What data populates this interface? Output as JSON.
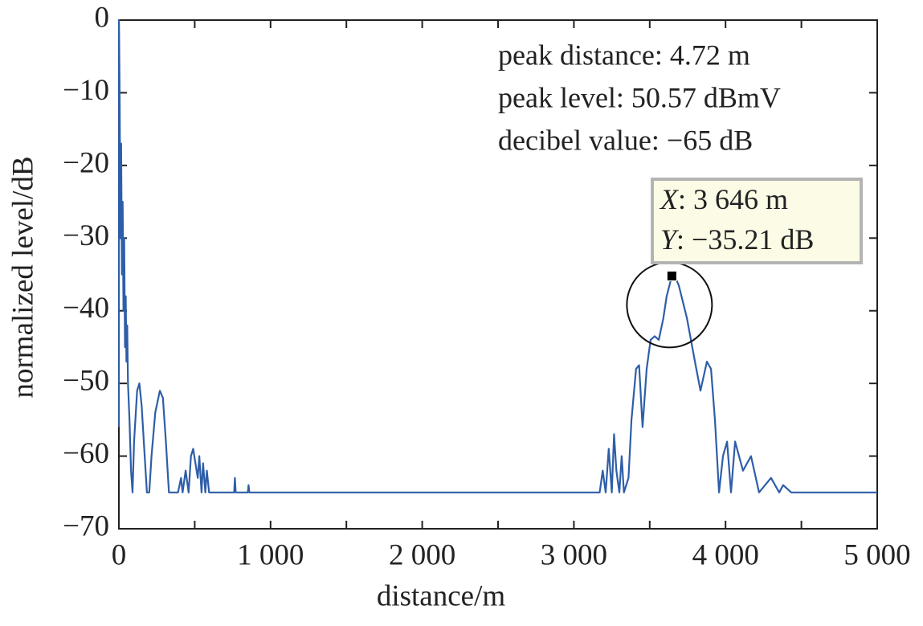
{
  "chart_data": {
    "type": "line",
    "x_label": "distance/m",
    "y_label": "normalized level/dB",
    "color": "#2e5ea8",
    "xlim": [
      0,
      5000
    ],
    "ylim": [
      -70,
      0
    ],
    "xticks": [
      0,
      {
        "value": 1000,
        "label": "1 000"
      },
      {
        "value": 2000,
        "label": "2 000"
      },
      {
        "value": 3000,
        "label": "3 000"
      },
      {
        "value": 4000,
        "label": "4 000"
      },
      {
        "value": 5000,
        "label": "5 000"
      }
    ],
    "xminor_ticks": [
      500,
      1500,
      2500,
      3500,
      4500
    ],
    "yticks": [
      0,
      {
        "value": -10,
        "label": "−10"
      },
      {
        "value": -20,
        "label": "−20"
      },
      {
        "value": -30,
        "label": "−30"
      },
      {
        "value": -40,
        "label": "−40"
      },
      {
        "value": -50,
        "label": "−50"
      },
      {
        "value": -60,
        "label": "−60"
      },
      {
        "value": -70,
        "label": "−70"
      }
    ],
    "annotations": [
      "peak distance: 4.72 m",
      "peak level: 50.57 dBmV",
      "decibel value: −65 dB"
    ],
    "datatip": {
      "x": 3646,
      "y": -35.21,
      "x_name": "X",
      "x_text": ": 3 646 m",
      "y_name": "Y",
      "y_text": ": −35.21 dB"
    },
    "x": [
      0,
      0.5,
      5,
      10,
      15,
      20,
      25,
      30,
      35,
      40,
      45,
      50,
      55,
      60,
      70,
      80,
      90,
      100,
      120,
      135,
      150,
      170,
      185,
      200,
      215,
      240,
      270,
      290,
      310,
      330,
      390,
      410,
      420,
      440,
      460,
      475,
      490,
      505,
      520,
      530,
      545,
      555,
      570,
      580,
      595,
      760,
      765,
      770,
      850,
      855,
      860,
      3170,
      3190,
      3210,
      3230,
      3250,
      3265,
      3280,
      3300,
      3315,
      3330,
      3360,
      3380,
      3410,
      3430,
      3453,
      3480,
      3506,
      3533,
      3560,
      3590,
      3612,
      3646,
      3670,
      3692,
      3745,
      3798,
      3835,
      3877,
      3904,
      3930,
      3957,
      3983,
      4010,
      4036,
      4063,
      4115,
      4168,
      4221,
      4300,
      4354,
      4380,
      4433,
      5000
    ],
    "values": [
      -56,
      0,
      -10,
      -30,
      -17,
      -35,
      -25,
      -40,
      -30,
      -45,
      -38,
      -47,
      -42,
      -50,
      -55,
      -62,
      -65,
      -58,
      -51,
      -50,
      -53,
      -60,
      -65,
      -65,
      -60,
      -54,
      -51,
      -52,
      -58,
      -65,
      -65,
      -63,
      -65,
      -62,
      -65,
      -60,
      -59,
      -61,
      -63,
      -60,
      -65,
      -61,
      -65,
      -62,
      -65,
      -65,
      -63,
      -65,
      -65,
      -64,
      -65,
      -65,
      -62,
      -65,
      -59,
      -65,
      -57,
      -62,
      -65,
      -60,
      -65,
      -63,
      -55,
      -48,
      -47.5,
      -56,
      -48,
      -44,
      -43.5,
      -44,
      -41,
      -38,
      -35.21,
      -35.5,
      -36.5,
      -41,
      -47,
      -51,
      -47,
      -48,
      -55,
      -65,
      -60,
      -58,
      -65,
      -58,
      -62,
      -60,
      -65,
      -63,
      -65,
      -64,
      -65,
      -65
    ]
  }
}
